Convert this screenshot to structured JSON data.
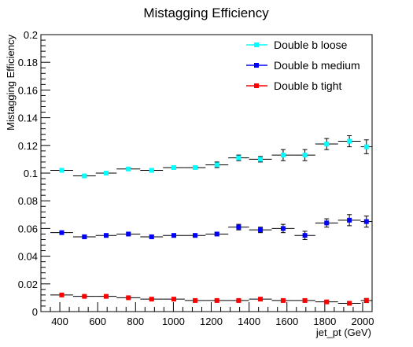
{
  "chart_data": {
    "type": "scatter",
    "title": "Mistagging Efficiency",
    "xlabel": "jet_pt (GeV)",
    "ylabel": "Mistagging Efficiency",
    "xlim": [
      300,
      2050
    ],
    "ylim": [
      0,
      0.2
    ],
    "x_ticks": [
      "400",
      "600",
      "800",
      "1000",
      "1200",
      "1400",
      "1600",
      "1800",
      "2000"
    ],
    "y_ticks": [
      "0",
      "0.02",
      "0.04",
      "0.06",
      "0.08",
      "0.1",
      "0.12",
      "0.14",
      "0.16",
      "0.18",
      "0.2"
    ],
    "legend_position": "top-right",
    "bin_edges": [
      350,
      470,
      590,
      700,
      825,
      945,
      1060,
      1170,
      1290,
      1400,
      1520,
      1640,
      1750,
      1870,
      1990,
      2050
    ],
    "series": [
      {
        "name": "Double b loose",
        "color": "#00ffff",
        "values": [
          0.102,
          0.098,
          0.1,
          0.103,
          0.102,
          0.104,
          0.104,
          0.106,
          0.111,
          0.11,
          0.113,
          0.113,
          0.121,
          0.123,
          0.119
        ],
        "errors": [
          0.001,
          0.001,
          0.001,
          0.001,
          0.001,
          0.001,
          0.001,
          0.002,
          0.002,
          0.002,
          0.004,
          0.004,
          0.004,
          0.004,
          0.005
        ]
      },
      {
        "name": "Double b medium",
        "color": "#0000ff",
        "values": [
          0.057,
          0.054,
          0.055,
          0.056,
          0.054,
          0.055,
          0.055,
          0.056,
          0.061,
          0.059,
          0.06,
          0.055,
          0.064,
          0.066,
          0.065
        ],
        "errors": [
          0.001,
          0.001,
          0.001,
          0.001,
          0.001,
          0.001,
          0.001,
          0.001,
          0.002,
          0.002,
          0.003,
          0.003,
          0.003,
          0.004,
          0.004
        ]
      },
      {
        "name": "Double b tight",
        "color": "#ff0000",
        "values": [
          0.012,
          0.011,
          0.011,
          0.01,
          0.009,
          0.009,
          0.008,
          0.008,
          0.008,
          0.009,
          0.008,
          0.008,
          0.007,
          0.006,
          0.008
        ],
        "errors": [
          0.0005,
          0.0005,
          0.0005,
          0.0005,
          0.0005,
          0.0005,
          0.0005,
          0.0005,
          0.0008,
          0.0008,
          0.0008,
          0.001,
          0.001,
          0.001,
          0.0015
        ]
      }
    ]
  }
}
